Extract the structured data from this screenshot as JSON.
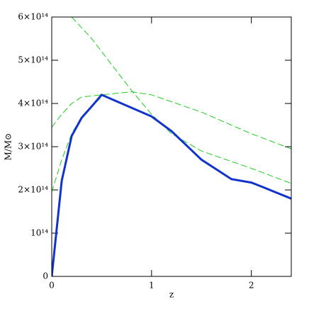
{
  "chart_data": {
    "type": "line",
    "x_label": "z",
    "y_label": "M/M⊙",
    "xlim": [
      0,
      2.4
    ],
    "ylim": [
      0,
      600000000000000.0
    ],
    "xticks": [
      0,
      1,
      2
    ],
    "yticks": [
      0,
      {
        "value": 100000000000000.0,
        "label": "10¹⁴"
      },
      {
        "value": 200000000000000.0,
        "label": "2×10¹⁴"
      },
      {
        "value": 300000000000000.0,
        "label": "3×10¹⁴"
      },
      {
        "value": 400000000000000.0,
        "label": "4×10¹⁴"
      },
      {
        "value": 500000000000000.0,
        "label": "5×10¹⁴"
      },
      {
        "value": 600000000000000.0,
        "label": "6×10¹⁴"
      }
    ],
    "series": [
      {
        "color": "#22cc22",
        "dashed": true,
        "x": [
          0.2,
          0.4,
          0.6,
          0.8,
          1.0,
          1.2,
          1.5,
          2.0,
          2.4
        ],
        "values": [
          600000000000000.0,
          550000000000000.0,
          490000000000000.0,
          430000000000000.0,
          375000000000000.0,
          330000000000000.0,
          290000000000000.0,
          250000000000000.0,
          215000000000000.0
        ]
      },
      {
        "color": "#22cc22",
        "dashed": true,
        "x": [
          0,
          0.1,
          0.2,
          0.3,
          0.5,
          0.8,
          1.0,
          1.5,
          2.0,
          2.4
        ],
        "values": [
          345000000000000.0,
          375000000000000.0,
          400000000000000.0,
          415000000000000.0,
          420000000000000.0,
          427000000000000.0,
          420000000000000.0,
          380000000000000.0,
          330000000000000.0,
          295000000000000.0
        ]
      },
      {
        "color": "#22cc22",
        "dashed": true,
        "x": [
          0,
          0.1,
          0.2,
          0.3,
          0.5
        ],
        "values": [
          195000000000000.0,
          270000000000000.0,
          330000000000000.0,
          370000000000000.0,
          415000000000000.0
        ]
      },
      {
        "color": "#1133cc",
        "dashed": false,
        "x": [
          0,
          0.1,
          0.2,
          0.3,
          0.4,
          0.5,
          0.7,
          1.0,
          1.2,
          1.5,
          1.8,
          2.0,
          2.1,
          2.4
        ],
        "values": [
          0,
          221000000000000.0,
          325000000000000.0,
          367000000000000.0,
          393000000000000.0,
          420000000000000.0,
          400000000000000.0,
          370000000000000.0,
          336000000000000.0,
          270000000000000.0,
          225000000000000.0,
          217000000000000.0,
          208000000000000.0,
          180000000000000.0
        ]
      }
    ]
  }
}
